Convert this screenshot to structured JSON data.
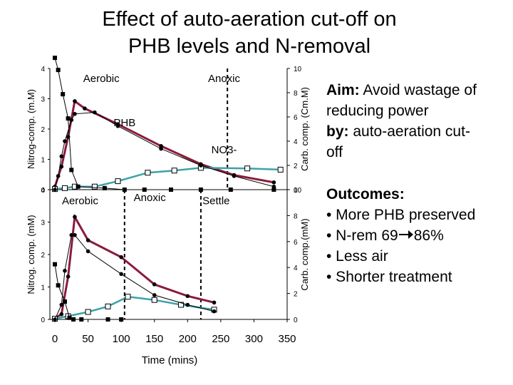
{
  "title_line1": "Effect of auto-aeration cut-off on",
  "title_line2": "PHB levels and N-removal",
  "aim": {
    "label": "Aim:",
    "text1": "Avoid wastage of",
    "text2": "reducing power",
    "by_label": "by:",
    "text3": "auto-aeration cut-",
    "text4": "off"
  },
  "outcomes": {
    "heading": "Outcomes:",
    "items": [
      "• More PHB preserved",
      "• N-rem 69",
      "86%",
      "• Less air",
      "• Shorter treatment"
    ]
  },
  "colors": {
    "phb": "#8b1a3a",
    "no3": "#3aa3a8",
    "line": "#000000"
  },
  "chart_data": [
    {
      "type": "line",
      "ylabel": "Nitrog-comp. (m.M)",
      "y2label": "Carb. comp. (Cm.M)",
      "ylim": [
        0,
        4
      ],
      "y2lim": [
        0,
        10
      ],
      "xlim": [
        0,
        350
      ],
      "yticks": [
        "0",
        "1",
        "2",
        "3",
        "4"
      ],
      "y2ticks": [
        "0",
        "2",
        "4",
        "6",
        "8",
        "10"
      ],
      "annotations": [
        {
          "text": "Aerobic",
          "x": 70,
          "y": 3.55
        },
        {
          "text": "Anoxic",
          "x": 255,
          "y": 3.55
        },
        {
          "text": "PHB",
          "x": 105,
          "y": 2.1
        },
        {
          "text": "NO3-",
          "x": 255,
          "y": 1.2
        }
      ],
      "phase_boundary_x": 260,
      "series": [
        {
          "key": "phb",
          "x": [
            0,
            10,
            20,
            30,
            45,
            95,
            160,
            220,
            270,
            330
          ],
          "y": [
            0.25,
            1.9,
            4.35,
            7.3,
            6.7,
            5.4,
            3.6,
            2.1,
            1.2,
            0.6
          ],
          "axis": "right"
        },
        {
          "key": "no3",
          "x": [
            0,
            15,
            30,
            60,
            95,
            140,
            180,
            220,
            290,
            340
          ],
          "y": [
            0.02,
            0.05,
            0.1,
            0.1,
            0.28,
            0.56,
            0.63,
            0.72,
            0.7,
            0.66
          ],
          "axis": "left"
        },
        {
          "key": "black_square",
          "x": [
            0,
            5,
            12,
            20,
            25,
            35,
            75,
            105,
            135,
            175,
            220,
            265,
            330
          ],
          "y": [
            4.35,
            3.95,
            3.15,
            2.35,
            0.65,
            0.1,
            0.05,
            0.0,
            0.0,
            0.0,
            0.0,
            0.0,
            0.0
          ],
          "axis": "left"
        },
        {
          "key": "circle",
          "x": [
            0,
            5,
            10,
            15,
            25,
            30,
            60,
            95,
            160,
            220,
            270,
            330
          ],
          "y": [
            0.0,
            0.45,
            1.1,
            1.6,
            2.3,
            2.5,
            2.55,
            2.1,
            1.35,
            0.8,
            0.45,
            0.1
          ],
          "axis": "left"
        }
      ]
    },
    {
      "type": "line",
      "ylabel": "Nitrog. comp. (mM)",
      "y2label": "Carb. comp.(mM)",
      "xlabel": "Time (mins)",
      "ylim": [
        0,
        4
      ],
      "y2lim": [
        0,
        10
      ],
      "xlim": [
        0,
        350
      ],
      "xticks": [
        "0",
        "50",
        "100",
        "150",
        "200",
        "250",
        "300",
        "350"
      ],
      "yticks": [
        "0",
        "1",
        "2",
        "3",
        "4"
      ],
      "y2ticks": [
        "0",
        "2",
        "4",
        "6",
        "8",
        "10"
      ],
      "annotations": [
        {
          "text": "Aerobic",
          "x": 38,
          "y": 3.55
        },
        {
          "text": "Anoxic",
          "x": 143,
          "y": 3.65
        },
        {
          "text": "Settle",
          "x": 243,
          "y": 3.55
        }
      ],
      "phase_boundary_x": [
        105,
        220
      ],
      "series": [
        {
          "key": "phb",
          "x": [
            0,
            10,
            20,
            30,
            50,
            100,
            150,
            200,
            240
          ],
          "y": [
            0.1,
            0.4,
            3.3,
            7.9,
            6.1,
            4.8,
            2.7,
            1.8,
            1.3
          ],
          "axis": "right"
        },
        {
          "key": "no3",
          "x": [
            0,
            20,
            50,
            80,
            110,
            150,
            190,
            240
          ],
          "y": [
            0.02,
            0.1,
            0.23,
            0.4,
            0.7,
            0.6,
            0.45,
            0.3
          ],
          "axis": "left"
        },
        {
          "key": "black_square",
          "x": [
            0,
            5,
            15,
            22,
            28,
            40,
            80,
            100
          ],
          "y": [
            1.7,
            1.05,
            0.55,
            0.05,
            0.0,
            0.0,
            0.0,
            0.0
          ],
          "axis": "left"
        },
        {
          "key": "circle",
          "x": [
            0,
            10,
            15,
            25,
            30,
            50,
            100,
            150,
            200,
            240
          ],
          "y": [
            0.0,
            0.45,
            1.5,
            2.6,
            2.6,
            2.1,
            1.4,
            0.75,
            0.45,
            0.25
          ],
          "axis": "left"
        }
      ]
    }
  ]
}
